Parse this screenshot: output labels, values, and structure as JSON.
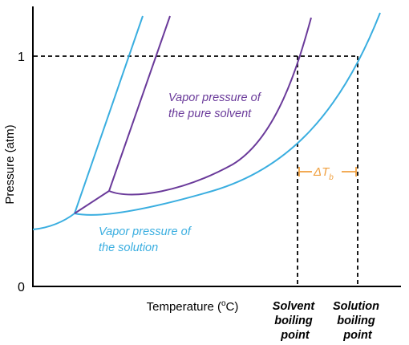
{
  "axes": {
    "ylabel": "Pressure (atm)",
    "xlabel_prefix": "Temperature (",
    "xlabel_sup": "o",
    "xlabel_suffix": "C)",
    "yticks": [
      "1",
      "0"
    ]
  },
  "labels": {
    "pure_solvent": [
      "Vapor pressure of",
      "the pure solvent"
    ],
    "solution": [
      "Vapor pressure of",
      "the solution"
    ],
    "solvent_bp": [
      "Solvent",
      "boiling",
      "point"
    ],
    "solution_bp": [
      "Solution",
      "boiling",
      "point"
    ],
    "delta_t": "ΔT",
    "delta_t_sub": "b"
  },
  "colors": {
    "solution": "#3aaee0",
    "pure_solvent": "#6a3a9a",
    "delta": "#f0a040",
    "axis": "#000000"
  }
}
